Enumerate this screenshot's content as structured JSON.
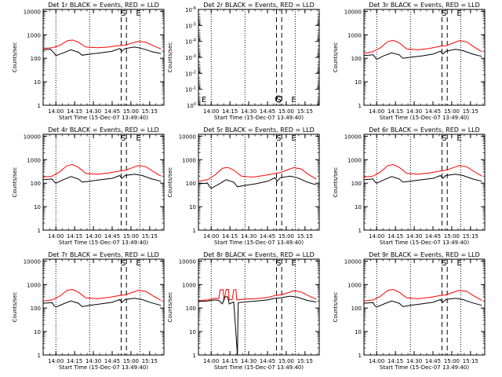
{
  "window": {
    "title": ""
  },
  "colors": {
    "events": "#000000",
    "lld": "#ff0000",
    "axes": "#000000",
    "background": "#ffffff"
  },
  "common": {
    "ylabel": "Counts/sec",
    "xlabel": "Start Time (15-Dec-07 13:49:40)",
    "x_tick_labels": [
      "14:00",
      "14:15",
      "14:30",
      "14:45",
      "15:00",
      "15:15"
    ],
    "x_tick_values": [
      14.0,
      14.25,
      14.5,
      14.75,
      15.0,
      15.25
    ],
    "xlim": [
      13.83,
      15.44
    ],
    "y_tick_labels_normal": [
      "1",
      "10",
      "100",
      "1000",
      "10000"
    ],
    "y_tick_labels_det2": [
      "10^0",
      "10^-1",
      "10^-2",
      "10^-3",
      "10^-4",
      "10^-5",
      "10^-6"
    ],
    "ylim": [
      1,
      12000
    ],
    "ylim_det2": [
      1,
      1e-06
    ],
    "y_scale": "log",
    "dotted_times": [
      14.0,
      14.45,
      15.12
    ],
    "dashed_times": [
      14.87,
      14.94
    ],
    "markers": [
      {
        "label": "S",
        "x": 14.9
      },
      {
        "label": "E",
        "x": 15.1
      }
    ]
  },
  "chart_data": [
    {
      "type": "line",
      "title": "Det 1r  BLACK = Events, RED = LLD",
      "profile": "standard",
      "events": [
        [
          13.83,
          230
        ],
        [
          13.93,
          240
        ],
        [
          13.98,
          160
        ],
        [
          14.0,
          130
        ],
        [
          14.1,
          170
        ],
        [
          14.2,
          230
        ],
        [
          14.3,
          180
        ],
        [
          14.35,
          135
        ],
        [
          14.45,
          150
        ],
        [
          14.6,
          170
        ],
        [
          14.75,
          200
        ],
        [
          14.85,
          260
        ],
        [
          14.88,
          200
        ],
        [
          14.92,
          260
        ],
        [
          15.05,
          300
        ],
        [
          15.15,
          260
        ],
        [
          15.28,
          190
        ],
        [
          15.4,
          160
        ]
      ],
      "lld": [
        [
          13.83,
          260
        ],
        [
          13.95,
          280
        ],
        [
          14.05,
          350
        ],
        [
          14.15,
          550
        ],
        [
          14.22,
          600
        ],
        [
          14.3,
          480
        ],
        [
          14.4,
          300
        ],
        [
          14.55,
          280
        ],
        [
          14.7,
          300
        ],
        [
          14.85,
          350
        ],
        [
          14.92,
          360
        ],
        [
          15.0,
          430
        ],
        [
          15.1,
          520
        ],
        [
          15.2,
          480
        ],
        [
          15.3,
          340
        ],
        [
          15.4,
          250
        ]
      ]
    },
    {
      "type": "line",
      "title": "Det 2r  BLACK = Events, RED = LLD",
      "profile": "empty",
      "events": [],
      "lld": []
    },
    {
      "type": "line",
      "title": "Det 3r  BLACK = Events, RED = LLD",
      "profile": "standard",
      "events": [
        [
          13.83,
          130
        ],
        [
          13.95,
          140
        ],
        [
          13.98,
          110
        ],
        [
          14.0,
          90
        ],
        [
          14.1,
          130
        ],
        [
          14.2,
          170
        ],
        [
          14.3,
          140
        ],
        [
          14.35,
          100
        ],
        [
          14.45,
          110
        ],
        [
          14.6,
          125
        ],
        [
          14.75,
          150
        ],
        [
          14.85,
          200
        ],
        [
          14.88,
          150
        ],
        [
          14.92,
          200
        ],
        [
          15.05,
          240
        ],
        [
          15.15,
          210
        ],
        [
          15.28,
          150
        ],
        [
          15.4,
          120
        ]
      ],
      "lld": [
        [
          13.83,
          160
        ],
        [
          13.95,
          190
        ],
        [
          14.05,
          280
        ],
        [
          14.15,
          520
        ],
        [
          14.22,
          580
        ],
        [
          14.3,
          450
        ],
        [
          14.4,
          250
        ],
        [
          14.55,
          230
        ],
        [
          14.7,
          260
        ],
        [
          14.85,
          330
        ],
        [
          14.92,
          340
        ],
        [
          15.0,
          420
        ],
        [
          15.1,
          560
        ],
        [
          15.2,
          500
        ],
        [
          15.3,
          300
        ],
        [
          15.4,
          190
        ]
      ]
    },
    {
      "type": "line",
      "title": "Det 4r  BLACK = Events, RED = LLD",
      "profile": "standard",
      "events": [
        [
          13.83,
          140
        ],
        [
          13.95,
          150
        ],
        [
          13.98,
          110
        ],
        [
          14.0,
          100
        ],
        [
          14.1,
          140
        ],
        [
          14.2,
          190
        ],
        [
          14.3,
          150
        ],
        [
          14.35,
          110
        ],
        [
          14.45,
          120
        ],
        [
          14.6,
          140
        ],
        [
          14.75,
          160
        ],
        [
          14.85,
          210
        ],
        [
          14.88,
          160
        ],
        [
          14.92,
          210
        ],
        [
          15.05,
          240
        ],
        [
          15.15,
          210
        ],
        [
          15.28,
          150
        ],
        [
          15.4,
          120
        ]
      ],
      "lld": [
        [
          13.83,
          180
        ],
        [
          13.95,
          200
        ],
        [
          14.05,
          300
        ],
        [
          14.15,
          560
        ],
        [
          14.22,
          620
        ],
        [
          14.3,
          470
        ],
        [
          14.4,
          260
        ],
        [
          14.55,
          240
        ],
        [
          14.7,
          270
        ],
        [
          14.85,
          330
        ],
        [
          14.92,
          350
        ],
        [
          15.0,
          430
        ],
        [
          15.1,
          560
        ],
        [
          15.2,
          500
        ],
        [
          15.3,
          310
        ],
        [
          15.4,
          200
        ]
      ]
    },
    {
      "type": "line",
      "title": "Det 5r  BLACK = Events, RED = LLD",
      "profile": "standard",
      "events": [
        [
          13.83,
          95
        ],
        [
          13.95,
          100
        ],
        [
          13.98,
          70
        ],
        [
          14.0,
          60
        ],
        [
          14.1,
          90
        ],
        [
          14.2,
          140
        ],
        [
          14.3,
          110
        ],
        [
          14.35,
          70
        ],
        [
          14.45,
          80
        ],
        [
          14.6,
          95
        ],
        [
          14.75,
          120
        ],
        [
          14.85,
          170
        ],
        [
          14.88,
          120
        ],
        [
          14.92,
          170
        ],
        [
          15.05,
          200
        ],
        [
          15.15,
          170
        ],
        [
          15.28,
          110
        ],
        [
          15.4,
          85
        ]
      ],
      "lld": [
        [
          13.83,
          120
        ],
        [
          13.95,
          140
        ],
        [
          14.05,
          220
        ],
        [
          14.15,
          430
        ],
        [
          14.22,
          470
        ],
        [
          14.3,
          360
        ],
        [
          14.4,
          200
        ],
        [
          14.55,
          180
        ],
        [
          14.7,
          210
        ],
        [
          14.85,
          260
        ],
        [
          14.92,
          280
        ],
        [
          15.0,
          350
        ],
        [
          15.1,
          460
        ],
        [
          15.2,
          400
        ],
        [
          15.3,
          230
        ],
        [
          15.4,
          150
        ]
      ]
    },
    {
      "type": "line",
      "title": "Det 6r  BLACK = Events, RED = LLD",
      "profile": "standard",
      "events": [
        [
          13.83,
          140
        ],
        [
          13.95,
          150
        ],
        [
          13.98,
          110
        ],
        [
          14.0,
          100
        ],
        [
          14.1,
          140
        ],
        [
          14.2,
          190
        ],
        [
          14.3,
          150
        ],
        [
          14.35,
          110
        ],
        [
          14.45,
          120
        ],
        [
          14.6,
          140
        ],
        [
          14.75,
          160
        ],
        [
          14.85,
          210
        ],
        [
          14.88,
          160
        ],
        [
          14.92,
          210
        ],
        [
          15.05,
          240
        ],
        [
          15.15,
          210
        ],
        [
          15.28,
          150
        ],
        [
          15.4,
          120
        ]
      ],
      "lld": [
        [
          13.83,
          180
        ],
        [
          13.95,
          200
        ],
        [
          14.05,
          300
        ],
        [
          14.15,
          560
        ],
        [
          14.22,
          620
        ],
        [
          14.3,
          470
        ],
        [
          14.4,
          260
        ],
        [
          14.55,
          240
        ],
        [
          14.7,
          270
        ],
        [
          14.85,
          330
        ],
        [
          14.92,
          350
        ],
        [
          15.0,
          430
        ],
        [
          15.1,
          560
        ],
        [
          15.2,
          500
        ],
        [
          15.3,
          310
        ],
        [
          15.4,
          200
        ]
      ]
    },
    {
      "type": "line",
      "title": "Det 7r  BLACK = Events, RED = LLD",
      "profile": "standard",
      "events": [
        [
          13.83,
          160
        ],
        [
          13.95,
          170
        ],
        [
          13.98,
          120
        ],
        [
          14.0,
          110
        ],
        [
          14.1,
          150
        ],
        [
          14.2,
          200
        ],
        [
          14.3,
          160
        ],
        [
          14.35,
          115
        ],
        [
          14.45,
          130
        ],
        [
          14.6,
          150
        ],
        [
          14.75,
          175
        ],
        [
          14.85,
          230
        ],
        [
          14.88,
          175
        ],
        [
          14.92,
          230
        ],
        [
          15.05,
          260
        ],
        [
          15.15,
          230
        ],
        [
          15.28,
          165
        ],
        [
          15.4,
          130
        ]
      ],
      "lld": [
        [
          13.83,
          200
        ],
        [
          13.95,
          220
        ],
        [
          14.05,
          320
        ],
        [
          14.15,
          570
        ],
        [
          14.22,
          620
        ],
        [
          14.3,
          470
        ],
        [
          14.4,
          270
        ],
        [
          14.55,
          250
        ],
        [
          14.7,
          280
        ],
        [
          14.85,
          340
        ],
        [
          14.92,
          360
        ],
        [
          15.0,
          440
        ],
        [
          15.1,
          570
        ],
        [
          15.2,
          510
        ],
        [
          15.3,
          320
        ],
        [
          15.4,
          210
        ]
      ]
    },
    {
      "type": "line",
      "title": "Det 8r  BLACK = Events, RED = LLD",
      "profile": "spiky",
      "events": [
        [
          13.83,
          190
        ],
        [
          13.95,
          200
        ],
        [
          14.05,
          220
        ],
        [
          14.1,
          210
        ],
        [
          14.15,
          150
        ],
        [
          14.18,
          300
        ],
        [
          14.22,
          300
        ],
        [
          14.24,
          150
        ],
        [
          14.3,
          180
        ],
        [
          14.35,
          1
        ],
        [
          14.36,
          170
        ],
        [
          14.45,
          180
        ],
        [
          14.6,
          200
        ],
        [
          14.75,
          220
        ],
        [
          14.85,
          260
        ],
        [
          14.92,
          270
        ],
        [
          15.05,
          320
        ],
        [
          15.15,
          290
        ],
        [
          15.28,
          210
        ],
        [
          15.4,
          180
        ]
      ],
      "lld": [
        [
          13.83,
          210
        ],
        [
          13.95,
          220
        ],
        [
          14.05,
          260
        ],
        [
          14.1,
          250
        ],
        [
          14.12,
          600
        ],
        [
          14.16,
          600
        ],
        [
          14.17,
          200
        ],
        [
          14.2,
          620
        ],
        [
          14.23,
          620
        ],
        [
          14.24,
          220
        ],
        [
          14.28,
          230
        ],
        [
          14.3,
          600
        ],
        [
          14.33,
          600
        ],
        [
          14.34,
          220
        ],
        [
          14.45,
          240
        ],
        [
          14.6,
          250
        ],
        [
          14.75,
          280
        ],
        [
          14.85,
          340
        ],
        [
          14.92,
          360
        ],
        [
          15.0,
          420
        ],
        [
          15.1,
          540
        ],
        [
          15.2,
          480
        ],
        [
          15.3,
          330
        ],
        [
          15.4,
          240
        ]
      ]
    },
    {
      "type": "line",
      "title": "Det 9r  BLACK = Events, RED = LLD",
      "profile": "standard",
      "events": [
        [
          13.83,
          160
        ],
        [
          13.95,
          170
        ],
        [
          13.98,
          120
        ],
        [
          14.0,
          110
        ],
        [
          14.1,
          150
        ],
        [
          14.2,
          200
        ],
        [
          14.3,
          160
        ],
        [
          14.35,
          115
        ],
        [
          14.45,
          130
        ],
        [
          14.6,
          150
        ],
        [
          14.75,
          175
        ],
        [
          14.85,
          230
        ],
        [
          14.88,
          175
        ],
        [
          14.92,
          230
        ],
        [
          15.05,
          260
        ],
        [
          15.15,
          230
        ],
        [
          15.28,
          165
        ],
        [
          15.4,
          130
        ]
      ],
      "lld": [
        [
          13.83,
          200
        ],
        [
          13.95,
          220
        ],
        [
          14.05,
          320
        ],
        [
          14.15,
          570
        ],
        [
          14.22,
          620
        ],
        [
          14.3,
          470
        ],
        [
          14.4,
          270
        ],
        [
          14.55,
          250
        ],
        [
          14.7,
          280
        ],
        [
          14.85,
          340
        ],
        [
          14.92,
          360
        ],
        [
          15.0,
          440
        ],
        [
          15.1,
          570
        ],
        [
          15.2,
          510
        ],
        [
          15.3,
          320
        ],
        [
          15.4,
          210
        ]
      ]
    }
  ]
}
